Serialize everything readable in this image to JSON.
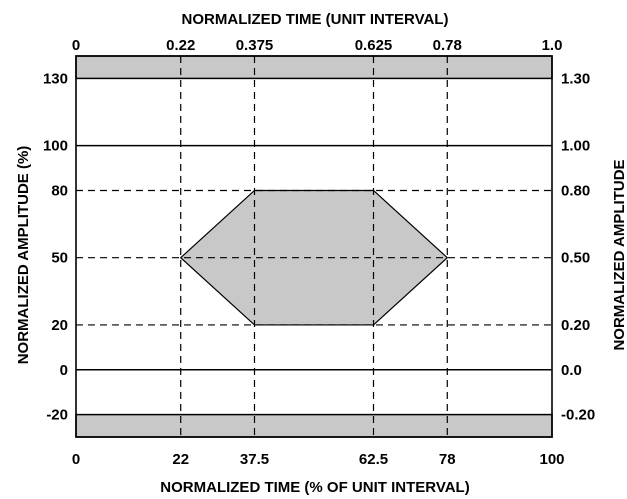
{
  "chart_data": {
    "type": "area",
    "title": "",
    "top_axis_label": "NORMALIZED TIME (UNIT INTERVAL)",
    "bottom_axis_label": "NORMALIZED TIME (% OF UNIT INTERVAL)",
    "left_axis_label": "NORMALIZED AMPLITUDE (%)",
    "right_axis_label": "NORMALIZED AMPLITUDE",
    "xlim": [
      0,
      100
    ],
    "ylim": [
      -30,
      140
    ],
    "top_ticks": [
      {
        "value": 0,
        "label": "0"
      },
      {
        "value": 22,
        "label": "0.22"
      },
      {
        "value": 37.5,
        "label": "0.375"
      },
      {
        "value": 62.5,
        "label": "0.625"
      },
      {
        "value": 78,
        "label": "0.78"
      },
      {
        "value": 100,
        "label": "1.0"
      }
    ],
    "bottom_ticks": [
      {
        "value": 0,
        "label": "0"
      },
      {
        "value": 22,
        "label": "22"
      },
      {
        "value": 37.5,
        "label": "37.5"
      },
      {
        "value": 62.5,
        "label": "62.5"
      },
      {
        "value": 78,
        "label": "78"
      },
      {
        "value": 100,
        "label": "100"
      }
    ],
    "left_ticks": [
      {
        "value": 130,
        "label": "130"
      },
      {
        "value": 100,
        "label": "100"
      },
      {
        "value": 80,
        "label": "80"
      },
      {
        "value": 50,
        "label": "50"
      },
      {
        "value": 20,
        "label": "20"
      },
      {
        "value": 0,
        "label": "0"
      },
      {
        "value": -20,
        "label": "-20"
      }
    ],
    "right_ticks": [
      {
        "value": 130,
        "label": "1.30"
      },
      {
        "value": 100,
        "label": "1.00"
      },
      {
        "value": 80,
        "label": "0.80"
      },
      {
        "value": 50,
        "label": "0.50"
      },
      {
        "value": 20,
        "label": "0.20"
      },
      {
        "value": 0,
        "label": "0.0"
      },
      {
        "value": -20,
        "label": "-0.20"
      }
    ],
    "solid_lines_y": [
      100,
      0
    ],
    "dashed_lines_y": [
      80,
      50,
      20
    ],
    "dashed_lines_x": [
      22,
      37.5,
      62.5,
      78
    ],
    "forbidden_regions": [
      {
        "y_from": 130,
        "y_to": 140
      },
      {
        "y_from": -30,
        "y_to": -20
      }
    ],
    "mask_polygon": [
      {
        "x": 22,
        "y": 50
      },
      {
        "x": 37.5,
        "y": 80
      },
      {
        "x": 62.5,
        "y": 80
      },
      {
        "x": 78,
        "y": 50
      },
      {
        "x": 62.5,
        "y": 20
      },
      {
        "x": 37.5,
        "y": 20
      }
    ],
    "colors": {
      "fill": "#c8c8c8",
      "line": "#000000",
      "background": "#ffffff"
    }
  }
}
